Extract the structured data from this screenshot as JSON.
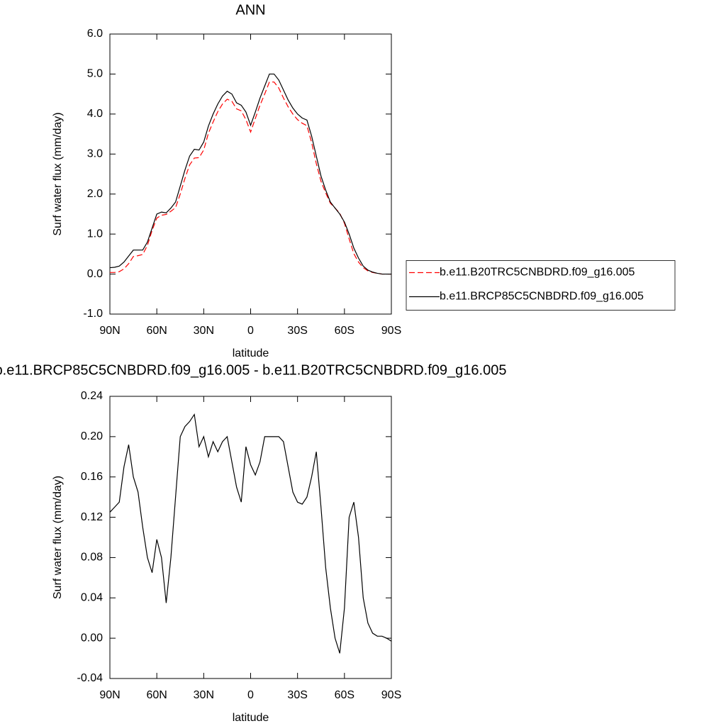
{
  "chart_data": [
    {
      "type": "line",
      "title": "ANN",
      "xlabel": "latitude",
      "ylabel": "Surf water flux (mm/day)",
      "x": [
        90,
        87,
        84,
        81,
        78,
        75,
        72,
        69,
        66,
        63,
        60,
        57,
        54,
        51,
        48,
        45,
        42,
        39,
        36,
        33,
        30,
        27,
        24,
        21,
        18,
        15,
        12,
        9,
        6,
        3,
        0,
        -3,
        -6,
        -9,
        -12,
        -15,
        -18,
        -21,
        -24,
        -27,
        -30,
        -33,
        -36,
        -39,
        -42,
        -45,
        -48,
        -51,
        -54,
        -57,
        -60,
        -63,
        -66,
        -69,
        -72,
        -75,
        -78,
        -81,
        -84,
        -87,
        -90
      ],
      "series": [
        {
          "name": "b.e11.B20TRC5CNBDRD.f09_g16.005",
          "color": "#ff0000",
          "linestyle": "dashed",
          "values": [
            0.04,
            0.04,
            0.06,
            0.13,
            0.26,
            0.44,
            0.46,
            0.49,
            0.72,
            1.09,
            1.4,
            1.47,
            1.49,
            1.57,
            1.66,
            2.0,
            2.39,
            2.73,
            2.9,
            2.91,
            3.1,
            3.52,
            3.8,
            4.06,
            4.25,
            4.37,
            4.32,
            4.13,
            4.08,
            3.86,
            3.55,
            3.89,
            4.22,
            4.5,
            4.8,
            4.8,
            4.65,
            4.4,
            4.18,
            4.0,
            3.86,
            3.77,
            3.71,
            3.29,
            2.76,
            2.32,
            2.03,
            1.77,
            1.65,
            1.52,
            1.27,
            0.88,
            0.51,
            0.3,
            0.16,
            0.08,
            0.04,
            0.02,
            0.0,
            0.0,
            0.0
          ]
        },
        {
          "name": "b.e11.BRCP85C5CNBDRD.f09_g16.005",
          "color": "#000000",
          "linestyle": "solid",
          "values": [
            0.16,
            0.17,
            0.2,
            0.3,
            0.45,
            0.6,
            0.6,
            0.6,
            0.8,
            1.15,
            1.5,
            1.55,
            1.53,
            1.65,
            1.8,
            2.2,
            2.6,
            2.95,
            3.12,
            3.1,
            3.3,
            3.7,
            4.0,
            4.25,
            4.45,
            4.57,
            4.5,
            4.28,
            4.22,
            4.05,
            3.72,
            4.05,
            4.4,
            4.7,
            5.0,
            5.0,
            4.85,
            4.6,
            4.35,
            4.15,
            4.0,
            3.9,
            3.85,
            3.45,
            2.95,
            2.45,
            2.1,
            1.8,
            1.65,
            1.5,
            1.3,
            1.0,
            0.65,
            0.4,
            0.2,
            0.1,
            0.05,
            0.02,
            0.0,
            0.0,
            0.0
          ]
        }
      ],
      "xlim": [
        90,
        -90
      ],
      "xticks": [
        {
          "value": 90,
          "label": "90N"
        },
        {
          "value": 60,
          "label": "60N"
        },
        {
          "value": 30,
          "label": "30N"
        },
        0,
        {
          "value": -30,
          "label": "30S"
        },
        {
          "value": -60,
          "label": "60S"
        },
        {
          "value": -90,
          "label": "90S"
        }
      ],
      "ylim": [
        -1,
        6
      ],
      "yticks": [
        {
          "value": -1,
          "label": "-1.0"
        },
        {
          "value": 0,
          "label": "0.0"
        },
        {
          "value": 1,
          "label": "1.0"
        },
        {
          "value": 2,
          "label": "2.0"
        },
        {
          "value": 3,
          "label": "3.0"
        },
        {
          "value": 4,
          "label": "4.0"
        },
        {
          "value": 5,
          "label": "5.0"
        },
        {
          "value": 6,
          "label": "6.0"
        }
      ],
      "legend": "right"
    },
    {
      "type": "line",
      "title": "b.e11.BRCP85C5CNBDRD.f09_g16.005 - b.e11.B20TRC5CNBDRD.f09_g16.005",
      "xlabel": "latitude",
      "ylabel": "Surf water flux (mm/day)",
      "x": [
        90,
        87,
        84,
        81,
        78,
        75,
        72,
        69,
        66,
        63,
        60,
        57,
        54,
        51,
        48,
        45,
        42,
        39,
        36,
        33,
        30,
        27,
        24,
        21,
        18,
        15,
        12,
        9,
        6,
        3,
        0,
        -3,
        -6,
        -9,
        -12,
        -15,
        -18,
        -21,
        -24,
        -27,
        -30,
        -33,
        -36,
        -39,
        -42,
        -45,
        -48,
        -51,
        -54,
        -57,
        -60,
        -63,
        -66,
        -69,
        -72,
        -75,
        -78,
        -81,
        -84,
        -87,
        -90
      ],
      "series": [
        {
          "color": "#000000",
          "linestyle": "solid",
          "values": [
            0.125,
            0.13,
            0.135,
            0.17,
            0.192,
            0.16,
            0.145,
            0.11,
            0.08,
            0.065,
            0.098,
            0.08,
            0.035,
            0.08,
            0.14,
            0.2,
            0.21,
            0.215,
            0.222,
            0.19,
            0.2,
            0.18,
            0.195,
            0.185,
            0.195,
            0.2,
            0.175,
            0.15,
            0.135,
            0.19,
            0.172,
            0.162,
            0.175,
            0.2,
            0.2,
            0.2,
            0.2,
            0.195,
            0.17,
            0.145,
            0.135,
            0.133,
            0.14,
            0.16,
            0.185,
            0.13,
            0.07,
            0.03,
            0.0,
            -0.015,
            0.03,
            0.12,
            0.135,
            0.1,
            0.04,
            0.015,
            0.005,
            0.002,
            0.002,
            0.0,
            -0.003
          ]
        }
      ],
      "xlim": [
        90,
        -90
      ],
      "xticks": [
        {
          "value": 90,
          "label": "90N"
        },
        {
          "value": 60,
          "label": "60N"
        },
        {
          "value": 30,
          "label": "30N"
        },
        0,
        {
          "value": -30,
          "label": "30S"
        },
        {
          "value": -60,
          "label": "60S"
        },
        {
          "value": -90,
          "label": "90S"
        }
      ],
      "ylim": [
        -0.04,
        0.24
      ],
      "yticks": [
        -0.04,
        {
          "value": 0,
          "label": "0.00"
        },
        0.04,
        0.08,
        0.12,
        0.16,
        {
          "value": 0.2,
          "label": "0.20"
        },
        0.24
      ]
    }
  ]
}
